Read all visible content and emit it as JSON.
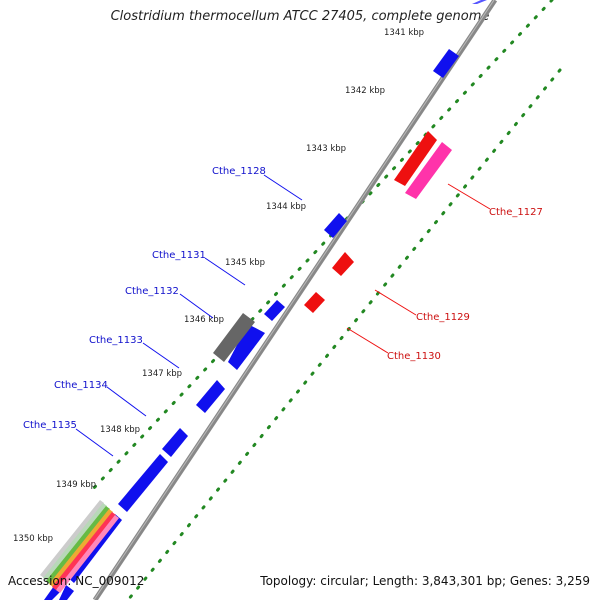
{
  "title": "Clostridium thermocellum ATCC 27405, complete genome",
  "accession": {
    "label": "Accession:",
    "value": "NC_009012"
  },
  "stats": {
    "topology_label": "Topology:",
    "topology": "circular",
    "length_label": "Length:",
    "length": "3,843,301 bp",
    "genes_label": "Genes:",
    "genes": "3,259"
  },
  "colors": {
    "plus_strand": "#1010ee",
    "minus_strand": "#ee1010",
    "pseudo": "#777777",
    "rna_magenta": "#ff33aa",
    "tick_green": "#228822",
    "backbone": "#888888"
  },
  "ticks": [
    "1341 kbp",
    "1342 kbp",
    "1343 kbp",
    "1344 kbp",
    "1345 kbp",
    "1346 kbp",
    "1347 kbp",
    "1348 kbp",
    "1349 kbp",
    "1350 kbp"
  ],
  "genes_plus": [
    "Cthe_1128",
    "Cthe_1131",
    "Cthe_1132",
    "Cthe_1133",
    "Cthe_1134",
    "Cthe_1135"
  ],
  "genes_minus": [
    "Cthe_1127",
    "Cthe_1129",
    "Cthe_1130"
  ]
}
